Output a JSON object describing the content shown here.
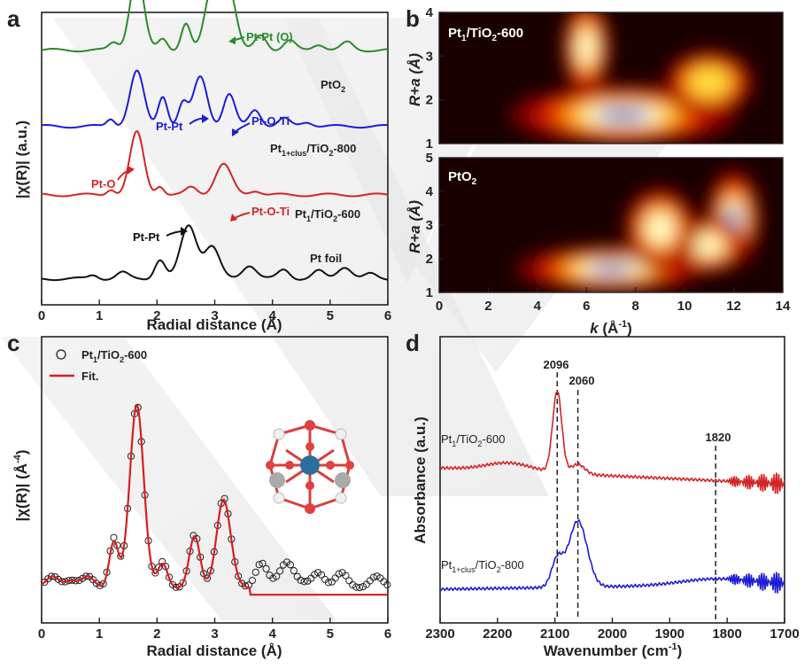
{
  "panels": {
    "a": {
      "letter": "a",
      "xlabel": "Radial distance (Å)",
      "ylabel": "|χ(R)| (a.u.)",
      "series_labels": {
        "pto2": "PtO",
        "pto2_sub": "2",
        "pt1clus_a": "Pt",
        "pt1clus_sub": "1+clus",
        "pt1clus_b": "/TiO",
        "pt1clus_sub2": "2",
        "pt1clus_c": "-800",
        "pt1_a": "Pt",
        "pt1_sub": "1",
        "pt1_b": "/TiO",
        "pt1_sub2": "2",
        "pt1_c": "-600",
        "foil": "Pt foil"
      },
      "annotations": {
        "ptpt_o": "Pt-Pt (O)",
        "ptpt_blue": "Pt-Pt",
        "ptoti_blue": "Pt-O-Ti",
        "pto_red": "Pt-O",
        "ptoti_red": "Pt-O-Ti",
        "ptpt_black": "Pt-Pt"
      }
    },
    "b": {
      "letter": "b",
      "xlabel_k": "k",
      "xlabel_unit": " (Å",
      "xlabel_exp": "-1",
      "xlabel_close": ")",
      "ylabel": "R+a (Å)",
      "top_label_a": "Pt",
      "top_label_sub": "1",
      "top_label_b": "/TiO",
      "top_label_sub2": "2",
      "top_label_c": "-600",
      "bottom_label_a": "PtO",
      "bottom_label_sub": "2"
    },
    "c": {
      "letter": "c",
      "xlabel": "Radial distance (Å)",
      "ylabel": "|χ(R)| (Å",
      "ylabel_exp": "-4",
      "ylabel_close": ")",
      "legend_data_a": "Pt",
      "legend_data_sub": "1",
      "legend_data_b": "/TiO",
      "legend_data_sub2": "2",
      "legend_data_c": "-600",
      "legend_fit": "Fit."
    },
    "d": {
      "letter": "d",
      "xlabel": "Wavenumber (cm",
      "xlabel_exp": "-1",
      "xlabel_close": ")",
      "ylabel": "Absorbance (a.u.)",
      "peaks": [
        "2096",
        "2060",
        "1820"
      ],
      "label_top_a": "Pt",
      "label_top_sub": "1",
      "label_top_b": "/TiO",
      "label_top_sub2": "2",
      "label_top_c": "-600",
      "label_bot_a": "Pt",
      "label_bot_sub": "1+clus",
      "label_bot_b": "/TiO",
      "label_bot_sub2": "2",
      "label_bot_c": "-800"
    }
  },
  "colors": {
    "green": "#2a8a2a",
    "blue": "#1d1dd6",
    "red": "#d42424",
    "black": "#111111",
    "fit": "#d42020"
  },
  "chart_data": [
    {
      "type": "line",
      "panel": "a",
      "xlim": [
        0,
        6
      ],
      "xticks": [
        0,
        1,
        2,
        3,
        4,
        5,
        6
      ],
      "xlabel": "Radial distance (Å)",
      "ylabel": "|χ(R)| (a.u.)",
      "series": [
        {
          "name": "PtO2",
          "offset": 3.0,
          "color": "green",
          "peaks": [
            [
              1.25,
              0.1,
              0.08
            ],
            [
              1.65,
              1.0,
              0.12
            ],
            [
              2.1,
              0.15,
              0.08
            ],
            [
              2.5,
              0.35,
              0.08
            ],
            [
              2.95,
              0.8,
              0.12
            ],
            [
              3.25,
              0.78,
              0.12
            ],
            [
              3.8,
              0.2,
              0.1
            ],
            [
              4.3,
              0.12,
              0.1
            ],
            [
              4.8,
              0.08,
              0.1
            ],
            [
              5.3,
              0.1,
              0.1
            ]
          ]
        },
        {
          "name": "Pt1+clus/TiO2-800",
          "offset": 2.0,
          "color": "blue",
          "peaks": [
            [
              1.2,
              0.1,
              0.07
            ],
            [
              1.65,
              0.72,
              0.12
            ],
            [
              2.1,
              0.4,
              0.08
            ],
            [
              2.45,
              0.3,
              0.08
            ],
            [
              2.75,
              0.65,
              0.12
            ],
            [
              3.25,
              0.42,
              0.1
            ],
            [
              3.7,
              0.22,
              0.1
            ],
            [
              4.2,
              0.1,
              0.1
            ],
            [
              4.6,
              0.06,
              0.1
            ]
          ]
        },
        {
          "name": "Pt1/TiO2-600",
          "offset": 1.1,
          "color": "red",
          "peaks": [
            [
              1.2,
              0.08,
              0.07
            ],
            [
              1.65,
              0.82,
              0.12
            ],
            [
              2.05,
              0.12,
              0.07
            ],
            [
              2.6,
              0.1,
              0.1
            ],
            [
              3.15,
              0.4,
              0.14
            ],
            [
              3.7,
              0.06,
              0.1
            ]
          ]
        },
        {
          "name": "Pt foil",
          "offset": 0.0,
          "color": "black",
          "peaks": [
            [
              0.9,
              0.05,
              0.08
            ],
            [
              1.4,
              0.08,
              0.1
            ],
            [
              2.05,
              0.25,
              0.09
            ],
            [
              2.55,
              0.7,
              0.14
            ],
            [
              2.95,
              0.42,
              0.13
            ],
            [
              3.6,
              0.18,
              0.12
            ],
            [
              4.2,
              0.12,
              0.1
            ],
            [
              4.8,
              0.1,
              0.1
            ],
            [
              5.25,
              0.16,
              0.12
            ],
            [
              5.7,
              0.06,
              0.1
            ]
          ]
        }
      ]
    },
    {
      "type": "heatmap",
      "panel": "b",
      "xlim": [
        0,
        14
      ],
      "xticks": [
        0,
        2,
        4,
        6,
        8,
        10,
        12,
        14
      ],
      "maps": [
        {
          "name": "Pt1/TiO2-600",
          "ylim": [
            1,
            4
          ],
          "yticks": [
            1,
            2,
            3,
            4
          ],
          "blobs": [
            [
              7.5,
              1.65,
              3.8,
              0.28,
              1.0
            ],
            [
              6.0,
              3.2,
              0.8,
              0.45,
              0.55
            ],
            [
              11.0,
              2.4,
              1.5,
              0.3,
              0.35
            ]
          ]
        },
        {
          "name": "PtO2",
          "ylim": [
            1,
            5
          ],
          "yticks": [
            1,
            2,
            3,
            4,
            5
          ],
          "blobs": [
            [
              7.0,
              1.7,
              3.2,
              0.28,
              1.0
            ],
            [
              12.0,
              3.2,
              0.9,
              0.6,
              0.95
            ],
            [
              11.0,
              2.4,
              1.2,
              0.35,
              0.6
            ],
            [
              9.0,
              2.9,
              1.2,
              0.5,
              0.5
            ]
          ]
        }
      ]
    },
    {
      "type": "line",
      "panel": "c",
      "xlim": [
        0,
        6
      ],
      "xticks": [
        0,
        1,
        2,
        3,
        4,
        5,
        6
      ],
      "series": [
        {
          "name": "Pt1/TiO2-600",
          "style": "markers",
          "peaks": [
            [
              0.2,
              0.04,
              0.1
            ],
            [
              0.5,
              0.04,
              0.1
            ],
            [
              0.8,
              0.04,
              0.1
            ],
            [
              1.25,
              0.26,
              0.08
            ],
            [
              1.65,
              1.0,
              0.12
            ],
            [
              2.1,
              0.12,
              0.08
            ],
            [
              2.65,
              0.27,
              0.09
            ],
            [
              3.15,
              0.48,
              0.12
            ],
            [
              3.8,
              0.12,
              0.1
            ],
            [
              4.25,
              0.14,
              0.12
            ],
            [
              4.8,
              0.08,
              0.1
            ],
            [
              5.2,
              0.06,
              0.1
            ],
            [
              5.8,
              0.04,
              0.1
            ]
          ]
        },
        {
          "name": "Fit.",
          "style": "line",
          "peaks": [
            [
              0.2,
              0.04,
              0.1
            ],
            [
              0.5,
              0.04,
              0.1
            ],
            [
              0.8,
              0.04,
              0.1
            ],
            [
              1.25,
              0.24,
              0.08
            ],
            [
              1.65,
              1.0,
              0.12
            ],
            [
              2.1,
              0.11,
              0.08
            ],
            [
              2.65,
              0.26,
              0.09
            ],
            [
              3.15,
              0.47,
              0.12
            ]
          ]
        }
      ]
    },
    {
      "type": "line",
      "panel": "d",
      "xlim": [
        2300,
        1700
      ],
      "xticks": [
        2300,
        2200,
        2100,
        2000,
        1900,
        1800,
        1700
      ],
      "series": [
        {
          "name": "Pt1/TiO2-600",
          "color": "red",
          "peaks": [
            [
              2096,
              1.0,
              8
            ],
            [
              2060,
              0.12,
              12
            ],
            [
              2180,
              0.1,
              40
            ]
          ]
        },
        {
          "name": "Pt1+clus/TiO2-800",
          "color": "blue",
          "peaks": [
            [
              2096,
              0.35,
              10
            ],
            [
              2060,
              0.85,
              16
            ],
            [
              1820,
              0.08,
              60
            ]
          ]
        }
      ],
      "markers": [
        2096,
        2060,
        1820
      ]
    }
  ]
}
